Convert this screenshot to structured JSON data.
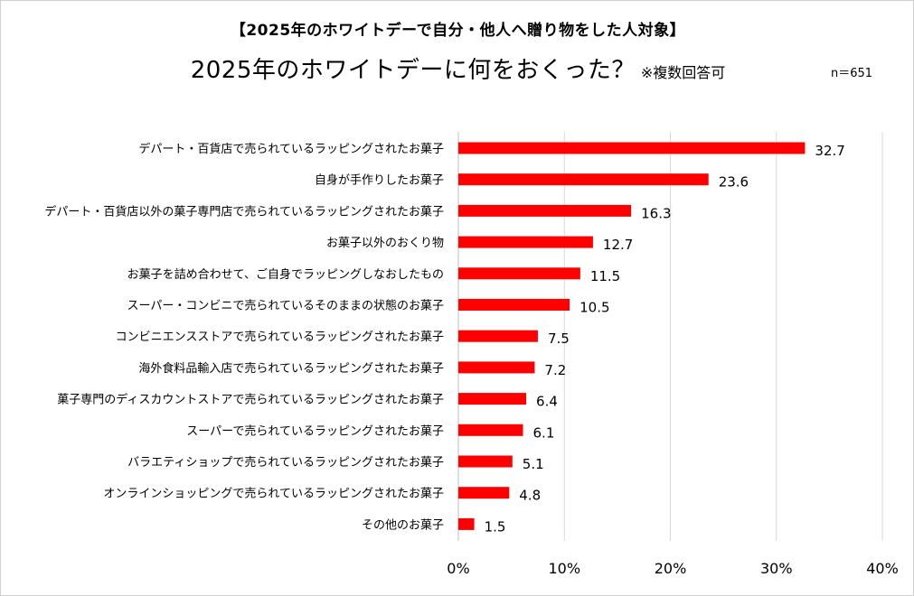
{
  "header": {
    "subtitle": "【2025年のホワイトデーで自分・他人へ贈り物をした人対象】",
    "title": "2025年のホワイトデーに何をおくった？",
    "title_note": "※複数回答可",
    "sample_size": "n＝651"
  },
  "colors": {
    "bar": "#ff0000",
    "gridline": "#d9d9d9"
  },
  "chart_data": {
    "type": "bar",
    "orientation": "horizontal",
    "title": "2025年のホワイトデーに何をおくった？",
    "subtitle": "【2025年のホワイトデーで自分・他人へ贈り物をした人対象】",
    "categories": [
      "デパート・百貨店で売られているラッピングされたお菓子",
      "自身が手作りしたお菓子",
      "デパート・百貨店以外の菓子専門店で売られているラッピングされたお菓子",
      "お菓子以外のおくり物",
      "お菓子を詰め合わせて、ご自身でラッピングしなおしたもの",
      "スーパー・コンビニで売られているそのままの状態のお菓子",
      "コンビニエンスストアで売られているラッピングされたお菓子",
      "海外食料品輸入店で売られているラッピングされたお菓子",
      "菓子専門のディスカウントストアで売られているラッピングされたお菓子",
      "スーパーで売られているラッピングされたお菓子",
      "バラエティショップで売られているラッピングされたお菓子",
      "オンラインショッピングで売られているラッピングされたお菓子",
      "その他のお菓子"
    ],
    "values": [
      32.7,
      23.6,
      16.3,
      12.7,
      11.5,
      10.5,
      7.5,
      7.2,
      6.4,
      6.1,
      5.1,
      4.8,
      1.5
    ],
    "value_labels": [
      "32.7",
      "23.6",
      "16.3",
      "12.7",
      "11.5",
      "10.5",
      "7.5",
      "7.2",
      "6.4",
      "6.1",
      "5.1",
      "4.8",
      "1.5"
    ],
    "xlim": [
      0,
      40
    ],
    "xticks": [
      0,
      10,
      20,
      30,
      40
    ],
    "xtick_labels": [
      "0%",
      "10%",
      "20%",
      "30%",
      "40%"
    ],
    "xlabel": "",
    "ylabel": "",
    "grid": "vertical",
    "legend": "none"
  }
}
